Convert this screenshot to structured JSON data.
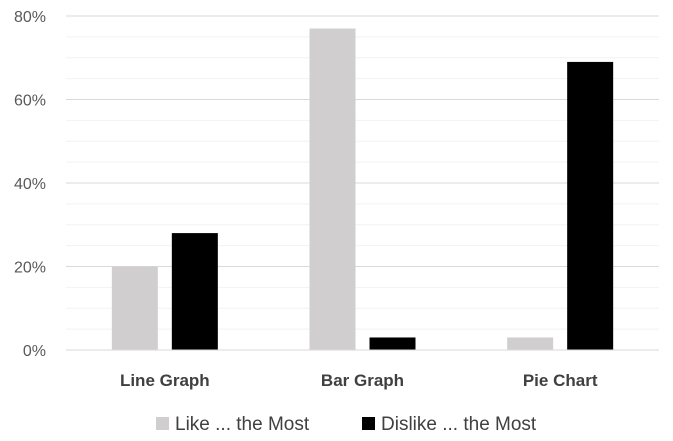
{
  "chart_data": {
    "type": "bar",
    "categories": [
      "Line Graph",
      "Bar Graph",
      "Pie Chart"
    ],
    "series": [
      {
        "name": "Like ... the Most",
        "values": [
          20,
          77,
          3
        ],
        "color": "#d0cece"
      },
      {
        "name": "Dislike ... the Most",
        "values": [
          28,
          3,
          69
        ],
        "color": "#000000"
      }
    ],
    "yticks": [
      "0%",
      "20%",
      "40%",
      "60%",
      "80%"
    ],
    "ytick_values": [
      0,
      20,
      40,
      60,
      80
    ],
    "ylim": [
      0,
      80
    ],
    "grid": true,
    "minor_grid": true,
    "legend_position": "bottom",
    "title": "",
    "xlabel": "",
    "ylabel": ""
  }
}
